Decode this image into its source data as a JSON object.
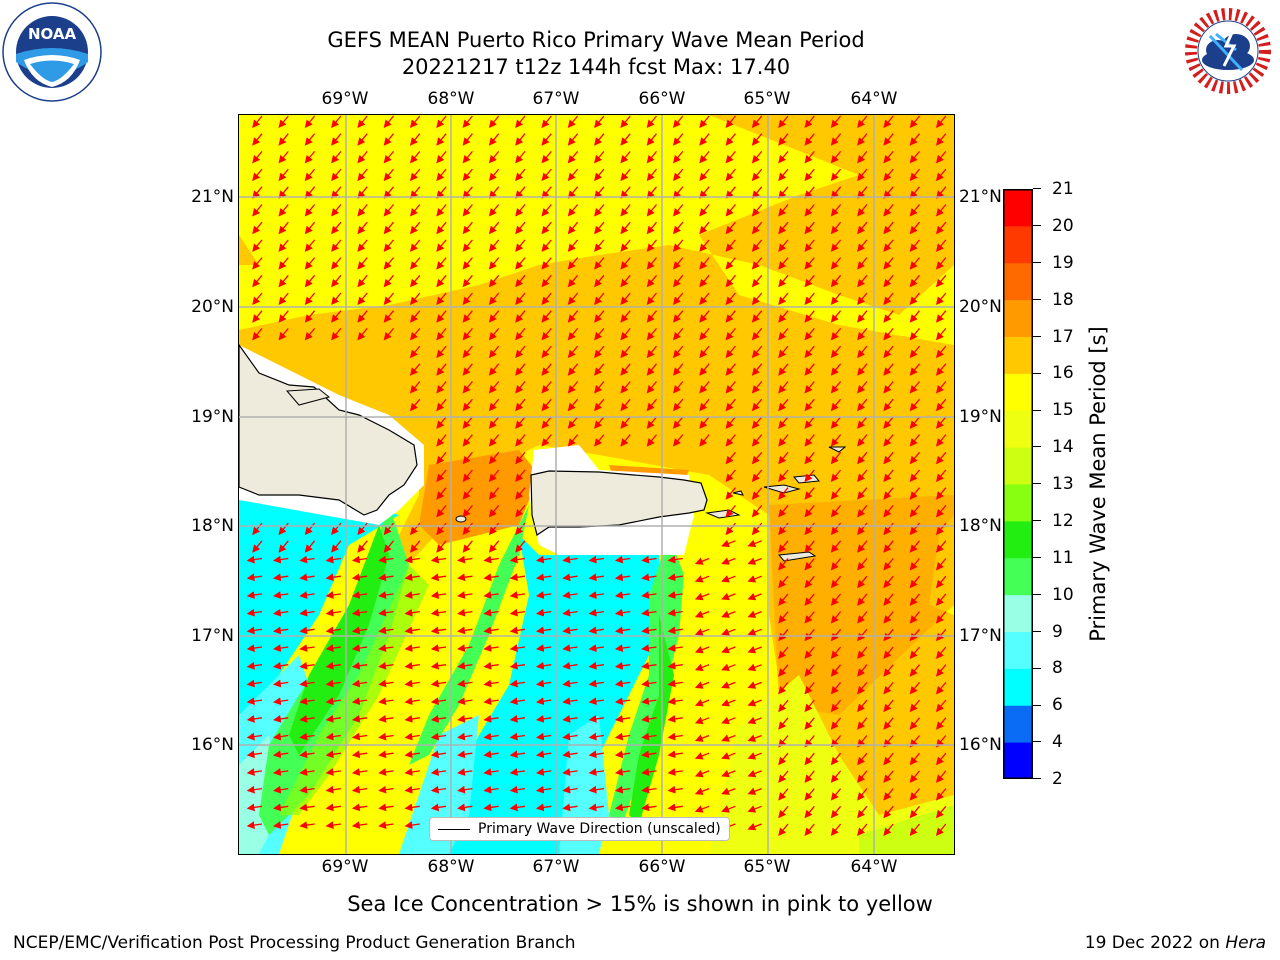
{
  "title_line1": "GEFS MEAN Puerto Rico Primary Wave Mean Period",
  "title_line2": "20221217 t12z 144h fcst   Max: 17.40",
  "lon_labels": [
    "69°W",
    "68°W",
    "67°W",
    "66°W",
    "65°W",
    "64°W"
  ],
  "lat_labels": [
    "21°N",
    "20°N",
    "19°N",
    "18°N",
    "17°N",
    "16°N"
  ],
  "legend_label": "Primary Wave Direction (unscaled)",
  "colorbar_label": "Primary Wave Mean Period [s]",
  "colorbar_ticks": [
    "2",
    "4",
    "6",
    "8",
    "9",
    "10",
    "11",
    "12",
    "13",
    "14",
    "15",
    "16",
    "17",
    "18",
    "19",
    "20",
    "21"
  ],
  "colorbar_colors": [
    "#0000ff",
    "#0a6cf5",
    "#00ffff",
    "#55ffff",
    "#99ffe5",
    "#44ff55",
    "#22ee11",
    "#88ff11",
    "#ccff11",
    "#eeff11",
    "#ffff00",
    "#ffc800",
    "#ff9a00",
    "#ff6a00",
    "#ff3a00",
    "#ff0000"
  ],
  "sea_ice_note": "Sea Ice Concentration > 15% is shown in pink to yellow",
  "footer_left": "NCEP/EMC/Verification Post Processing Product Generation Branch",
  "footer_right_prefix": "19 Dec 2022 on ",
  "footer_right_machine": "Hera",
  "logo_left": "NOAA",
  "logo_left_ring": "NATIONAL OCEANIC AND ATMOSPHERIC ADMINISTRATION · U.S. DEPARTMENT OF COMMERCE",
  "logo_right_ring": "NATIONAL WEATHER SERVICE",
  "colors": {
    "land": "#efebdc",
    "arrow": "#ff0000",
    "grid": "#b0b0b0"
  }
}
